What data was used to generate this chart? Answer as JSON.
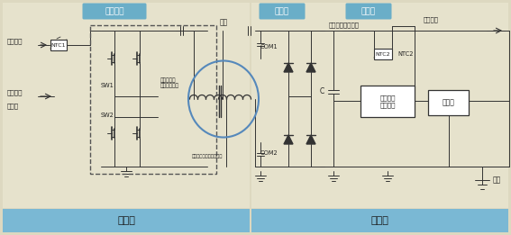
{
  "bg_color": "#ddd8c0",
  "left_bg": "#e8e4d0",
  "right_bg": "#e8e4d0",
  "bar_color": "#7ab8d4",
  "label_box_color": "#6aaec8",
  "line_color": "#333333",
  "white": "#ffffff",
  "dark": "#222222",
  "blue_oval": "#5588bb",
  "fig_w": 5.67,
  "fig_h": 2.61,
  "dpi": 100,
  "labels": {
    "power_bridge": "电源全桥",
    "rectifier": "整流桥",
    "mcu": "单片机",
    "coil": "线圈",
    "input_v": "输入电压",
    "ntc1": "NTC1",
    "ntc2": "NTC2",
    "pwm": "脉宽调变",
    "mcu_left": "单片机",
    "sw1": "SW1",
    "sw2": "SW2",
    "tx_label": "发射端电感\n电容谐振电路",
    "rx_label": "接收端电感电容谐振振路",
    "com1": "COM1",
    "com2": "COM2",
    "dynamic_v": "动态调整输出电压",
    "output_v": "输出电压",
    "cap_c": "C",
    "ldo": "低压差线\n性稳压器",
    "charger": "充电器",
    "battery": "电池",
    "transmit": "发射端",
    "receive": "接收端"
  }
}
